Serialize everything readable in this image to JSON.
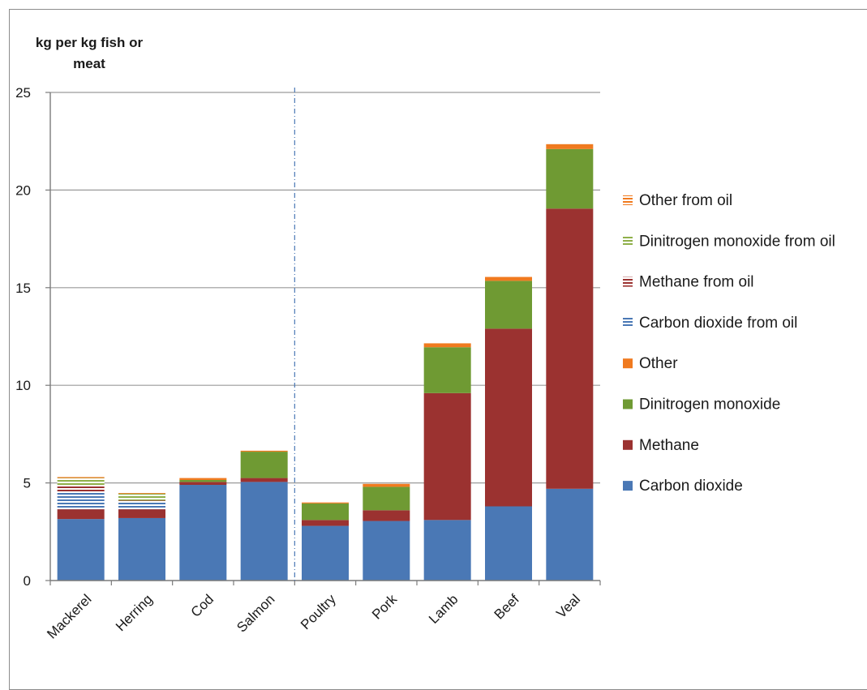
{
  "chart_data": {
    "type": "bar",
    "stacked": true,
    "ylabel": "kg per kg fish or meat",
    "ylabel_lines": [
      "kg per kg fish or",
      "meat"
    ],
    "ylim": [
      0,
      25
    ],
    "yticks": [
      0,
      5,
      10,
      15,
      20,
      25
    ],
    "grid": "horizontal",
    "legend_position": "right",
    "divider_after_category": "Salmon",
    "categories": [
      "Mackerel",
      "Herring",
      "Cod",
      "Salmon",
      "Poultry",
      "Pork",
      "Lamb",
      "Beef",
      "Veal"
    ],
    "series": [
      {
        "name": "Carbon dioxide",
        "color": "#4a78b5",
        "pattern": "solid",
        "values": [
          3.15,
          3.2,
          4.9,
          5.05,
          2.8,
          3.05,
          3.1,
          3.8,
          4.7
        ]
      },
      {
        "name": "Methane",
        "color": "#9b3230",
        "pattern": "solid",
        "values": [
          0.5,
          0.45,
          0.15,
          0.2,
          0.3,
          0.55,
          6.5,
          9.1,
          14.35
        ]
      },
      {
        "name": "Dinitrogen monoxide",
        "color": "#6f9a33",
        "pattern": "solid",
        "values": [
          0,
          0,
          0.1,
          1.35,
          0.85,
          1.2,
          2.35,
          2.45,
          3.05
        ]
      },
      {
        "name": "Other",
        "color": "#f07a1f",
        "pattern": "solid",
        "values": [
          0,
          0,
          0.1,
          0.05,
          0.05,
          0.15,
          0.2,
          0.2,
          0.25
        ]
      },
      {
        "name": "Carbon dioxide from oil",
        "color": "#4a78b5",
        "pattern": "striped",
        "values": [
          0.9,
          0.35,
          0,
          0,
          0,
          0,
          0,
          0,
          0
        ]
      },
      {
        "name": "Methane from oil",
        "color": "#9b3230",
        "pattern": "striped",
        "values": [
          0.3,
          0.1,
          0,
          0,
          0,
          0,
          0,
          0,
          0
        ]
      },
      {
        "name": "Dinitrogen monoxide from oil",
        "color": "#8fb04a",
        "pattern": "striped",
        "values": [
          0.4,
          0.35,
          0,
          0,
          0,
          0,
          0,
          0,
          0
        ]
      },
      {
        "name": "Other from oil",
        "color": "#f07a1f",
        "pattern": "striped",
        "values": [
          0.05,
          0.05,
          0,
          0,
          0,
          0,
          0,
          0,
          0
        ]
      }
    ],
    "legend_order": [
      "Other from oil",
      "Dinitrogen monoxide from oil",
      "Methane from oil",
      "Carbon dioxide from oil",
      "Other",
      "Dinitrogen monoxide",
      "Methane",
      "Carbon dioxide"
    ]
  }
}
